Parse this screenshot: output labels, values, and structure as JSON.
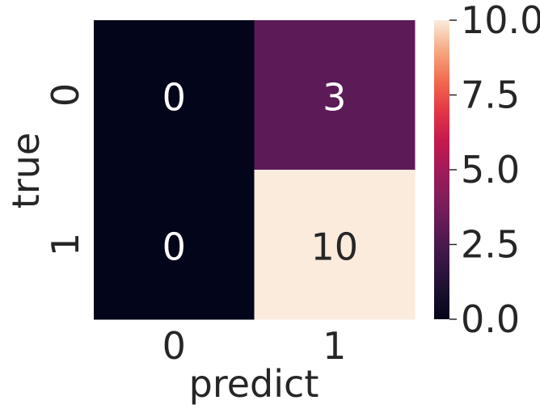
{
  "chart_data": {
    "type": "heatmap",
    "title": "",
    "xlabel": "predict",
    "ylabel": "true",
    "x_categories": [
      "0",
      "1"
    ],
    "y_categories": [
      "0",
      "1"
    ],
    "values": [
      [
        0,
        3
      ],
      [
        0,
        10
      ]
    ],
    "annotations": [
      [
        "0",
        "3"
      ],
      [
        "0",
        "10"
      ]
    ],
    "colorbar": {
      "vmin": 0,
      "vmax": 10,
      "ticks": [
        "0.0",
        "2.5",
        "5.0",
        "7.5",
        "10.0"
      ],
      "tick_values": [
        0,
        2.5,
        5,
        7.5,
        10
      ],
      "colormap": "rocket",
      "low_color": "#03051A",
      "high_color": "#FAEBDD"
    },
    "annotation_colors": {
      "on_dark": "#ffffff",
      "on_light": "#262626"
    },
    "text_color": "#262626"
  }
}
